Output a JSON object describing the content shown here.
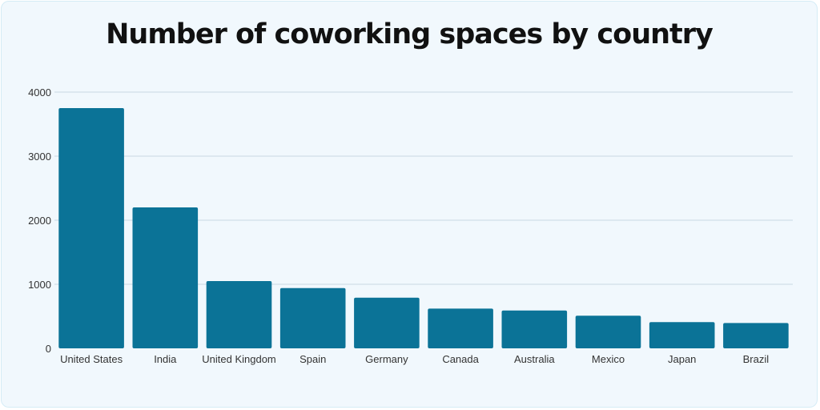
{
  "chart_data": {
    "type": "bar",
    "title": "Number of coworking spaces by country",
    "xlabel": "",
    "ylabel": "",
    "categories": [
      "United States",
      "India",
      "United Kingdom",
      "Spain",
      "Germany",
      "Canada",
      "Australia",
      "Mexico",
      "Japan",
      "Brazil"
    ],
    "values": [
      3750,
      2200,
      1050,
      940,
      790,
      620,
      590,
      510,
      410,
      395
    ],
    "ylim": [
      0,
      4000
    ],
    "yticks": [
      "0",
      "1000",
      "2000",
      "3000",
      "4000"
    ],
    "grid": true,
    "legend": "none",
    "colors": {
      "bar": "#0b7397",
      "grid": "#c9d9e3",
      "background": "#f1f8fd"
    }
  }
}
